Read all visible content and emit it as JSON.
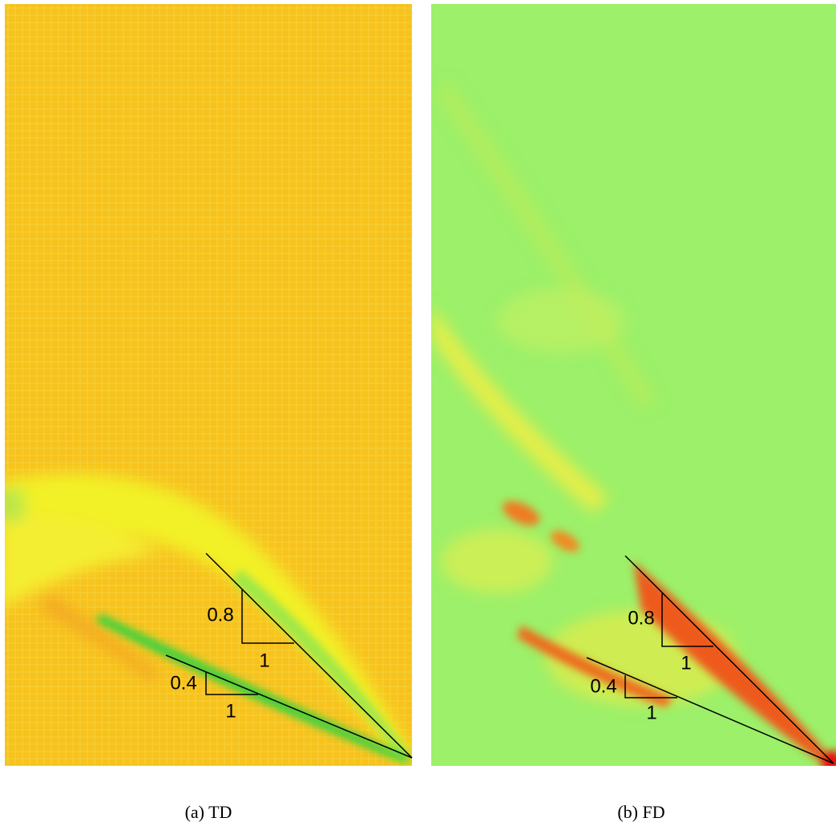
{
  "panels": [
    {
      "caption": "(a) TD",
      "steep": {
        "rise": "0.8",
        "run": "1"
      },
      "shallow": {
        "rise": "0.4",
        "run": "1"
      }
    },
    {
      "caption": "(b) FD",
      "steep": {
        "rise": "0.8",
        "run": "1"
      },
      "shallow": {
        "rise": "0.4",
        "run": "1"
      }
    }
  ]
}
